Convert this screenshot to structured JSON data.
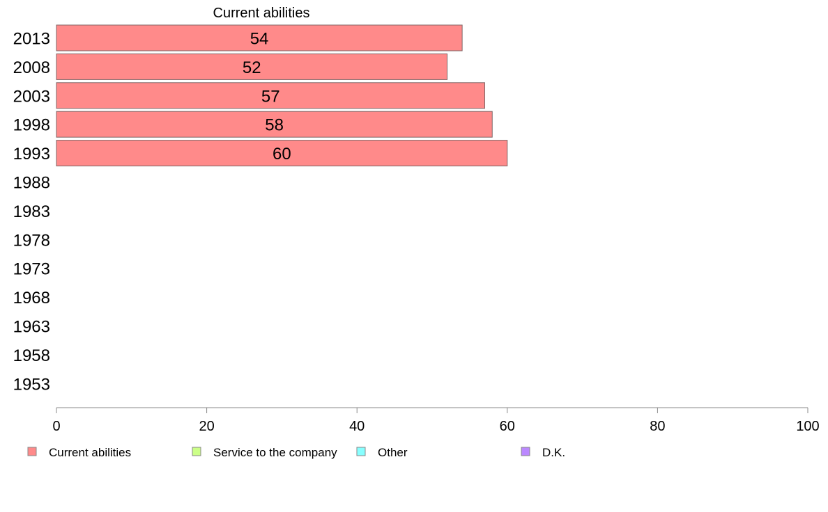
{
  "chart_data": {
    "type": "bar",
    "orientation": "horizontal",
    "categories": [
      "2013",
      "2008",
      "2003",
      "1998",
      "1993",
      "1988",
      "1983",
      "1978",
      "1973",
      "1968",
      "1963",
      "1958",
      "1953"
    ],
    "series": [
      {
        "name": "Current abilities",
        "color": "#ff8a8a",
        "values": [
          54,
          52,
          57,
          58,
          60,
          null,
          null,
          null,
          null,
          null,
          null,
          null,
          null
        ]
      }
    ],
    "xlim": [
      0,
      100
    ],
    "xticks": [
      0,
      20,
      40,
      60,
      80,
      100
    ],
    "legend": {
      "placement": "bottom",
      "entries": [
        {
          "label": "Current abilities",
          "color": "#ff8a8a"
        },
        {
          "label": "Service to the company",
          "color": "#ccff88"
        },
        {
          "label": "Other",
          "color": "#88ffff"
        },
        {
          "label": "D.K.",
          "color": "#bb88ff"
        }
      ]
    },
    "grid": false
  }
}
